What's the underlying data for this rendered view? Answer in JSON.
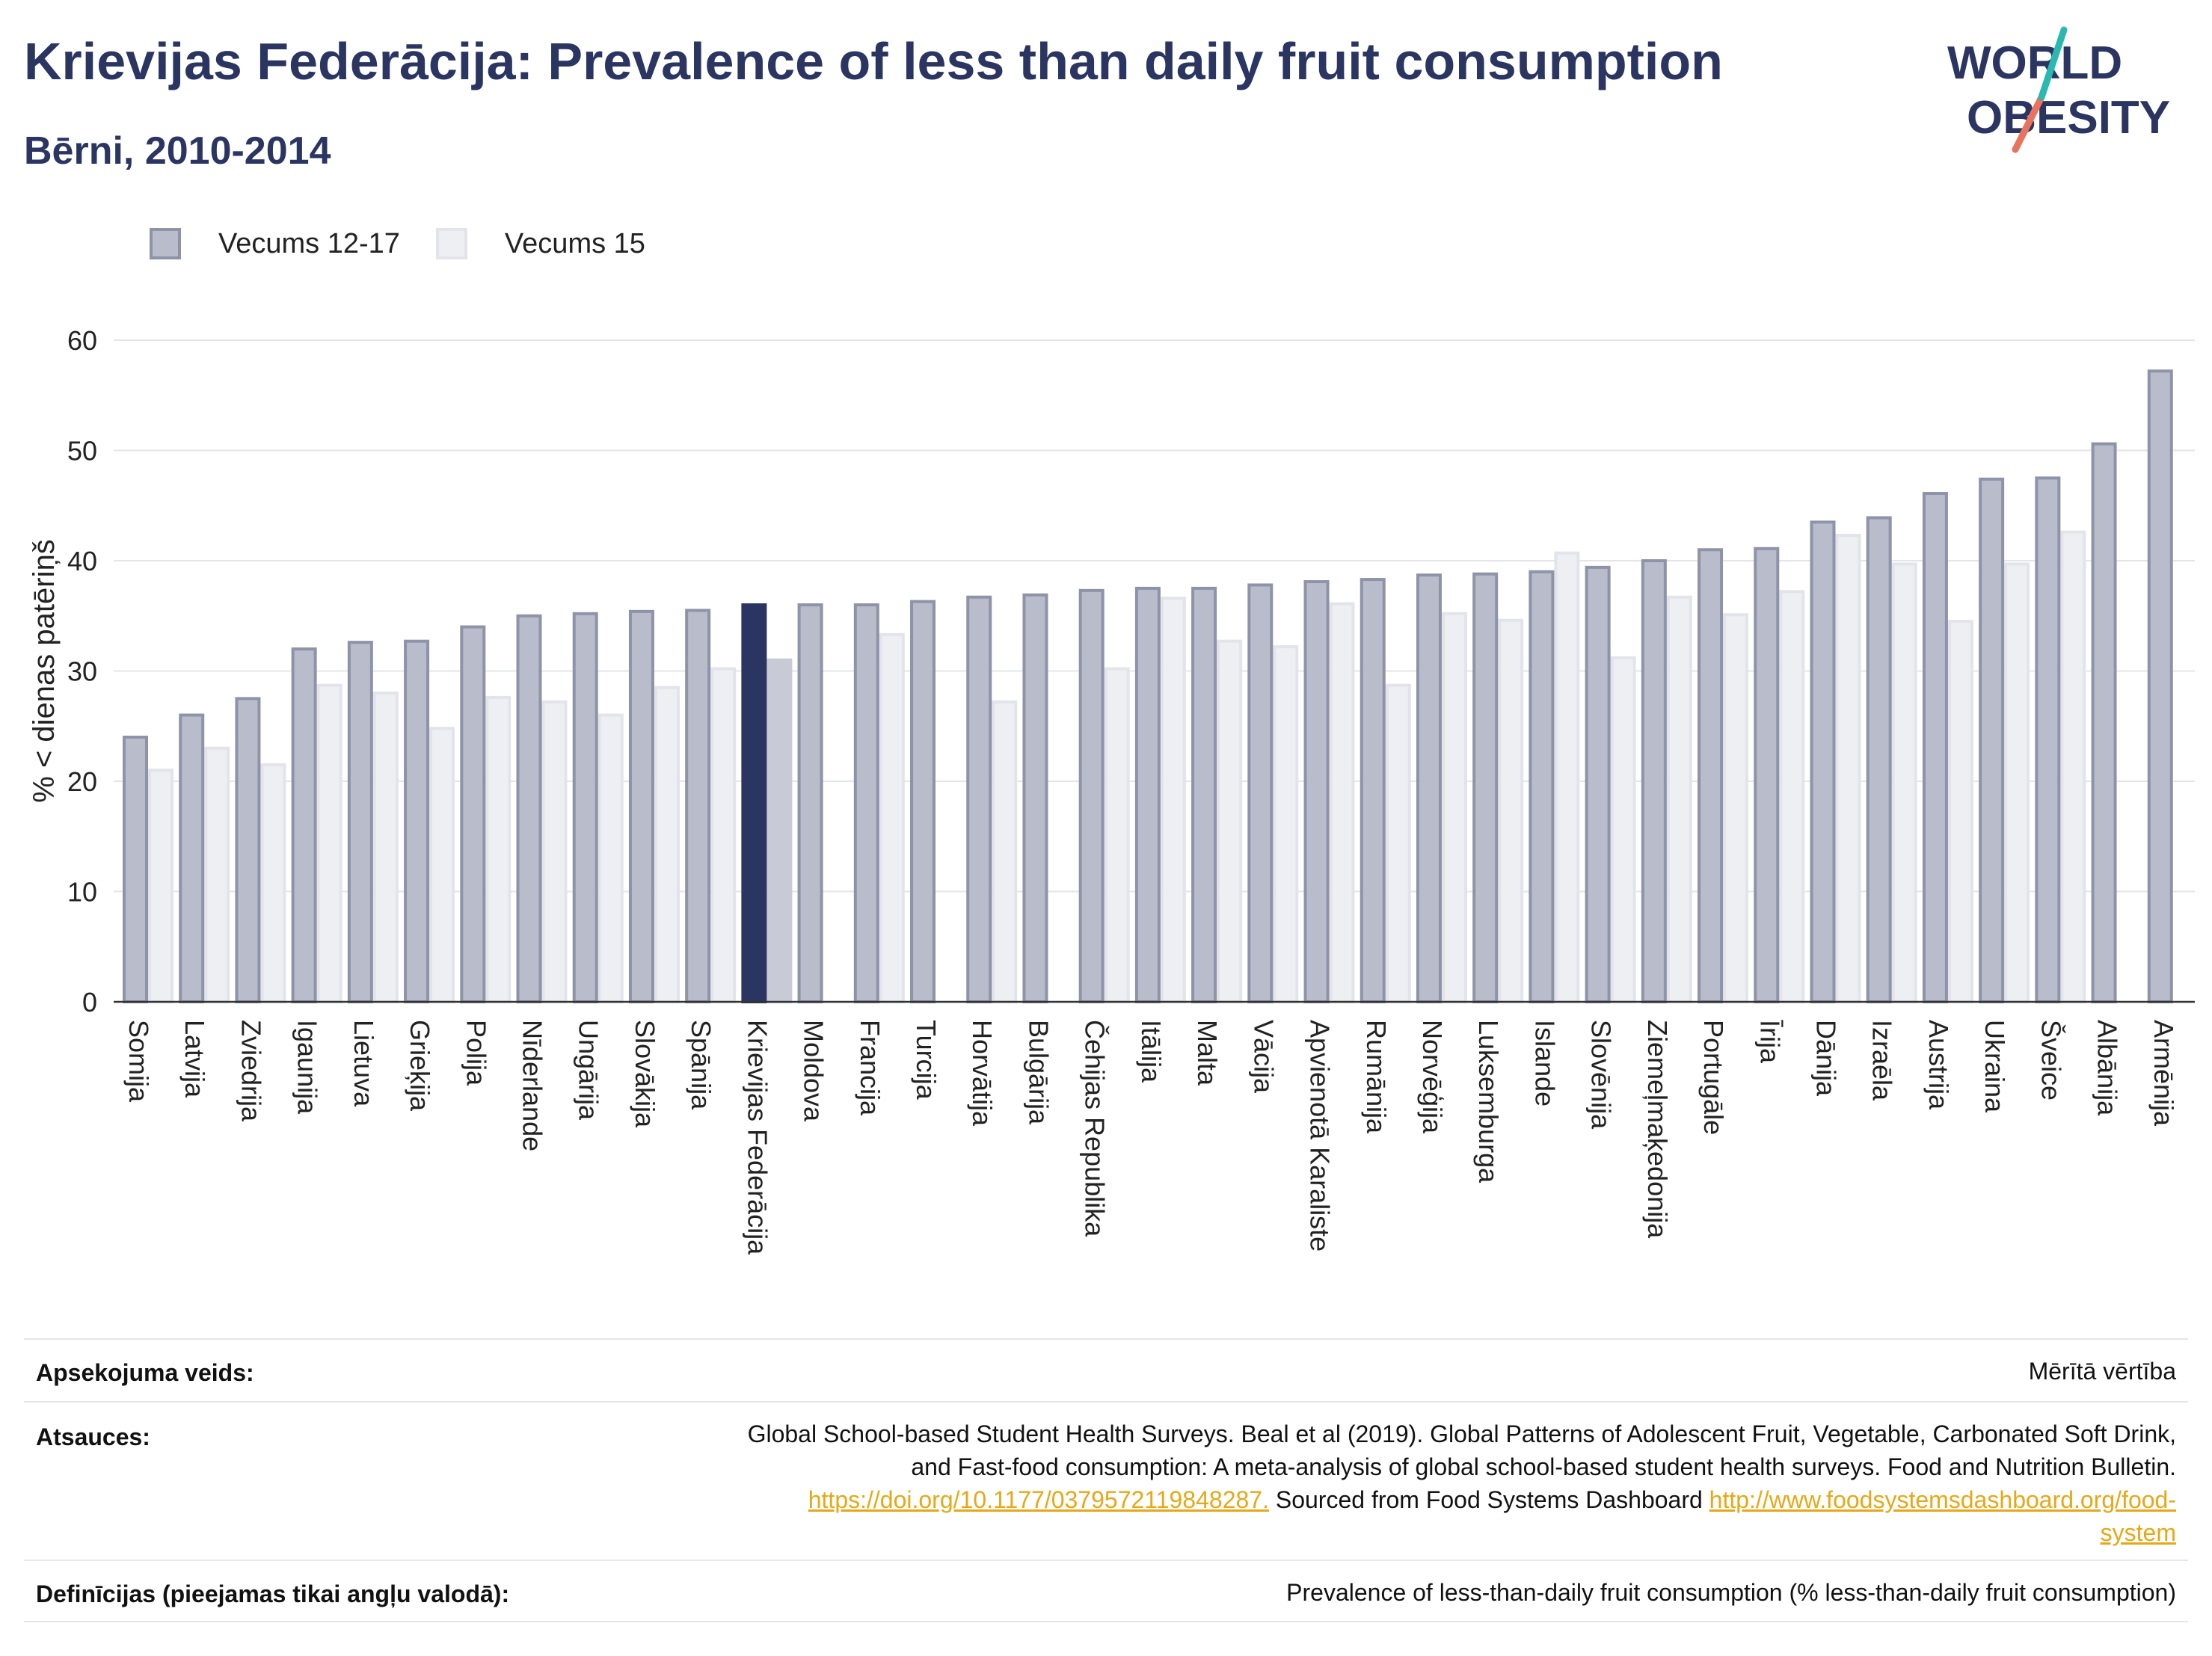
{
  "header": {
    "title": "Krievijas Federācija: Prevalence of less than daily fruit consumption",
    "subtitle": "Bērni, 2010-2014"
  },
  "logo": {
    "line1": "WORLD",
    "line2": "OBESITY"
  },
  "legend": {
    "series1": "Vecums 12-17",
    "series2": "Vecums 15"
  },
  "colors": {
    "series1_fill": "#b8bccb",
    "series1_stroke": "#8e93a8",
    "series2_fill": "#eeeff3",
    "series2_stroke": "#e2e4ea",
    "highlight1": "#2b3562",
    "highlight2": "#c8cad6",
    "title": "#2b3562",
    "link": "#e6a817"
  },
  "chart_data": {
    "type": "bar",
    "ylabel": "% < dienas patēriņš",
    "ylim": [
      0,
      60
    ],
    "yticks": [
      0,
      10,
      20,
      30,
      40,
      50,
      60
    ],
    "highlight": "Krievijas Federācija",
    "categories": [
      "Somija",
      "Latvija",
      "Zviedrija",
      "Igaunija",
      "Lietuva",
      "Grieķija",
      "Polija",
      "Nīderlande",
      "Ungārija",
      "Slovākija",
      "Spānija",
      "Krievijas Federācija",
      "Moldova",
      "Francija",
      "Turcija",
      "Horvātija",
      "Bulgārija",
      "Čehijas Republika",
      "Itālija",
      "Malta",
      "Vācija",
      "Apvienotā Karaliste",
      "Rumānija",
      "Norvēģija",
      "Luksemburga",
      "Islande",
      "Slovēnija",
      "Ziemeļmaķedonija",
      "Portugāle",
      "Īrija",
      "Dānija",
      "Izraēla",
      "Austrija",
      "Ukraina",
      "Šveice",
      "Albānija",
      "Armēnija"
    ],
    "series": [
      {
        "name": "Vecums 12-17",
        "values": [
          24,
          26,
          27.5,
          32,
          32.6,
          32.7,
          34,
          35,
          35.2,
          35.4,
          35.5,
          36,
          36,
          36,
          36.3,
          36.7,
          36.9,
          37.3,
          37.5,
          37.5,
          37.8,
          38.1,
          38.3,
          38.7,
          38.8,
          39,
          39.4,
          40,
          41,
          41.1,
          43.5,
          43.9,
          46.1,
          47.4,
          47.5,
          50.6,
          57.2
        ]
      },
      {
        "name": "Vecums 15",
        "values": [
          21,
          23,
          21.5,
          28.7,
          28,
          24.8,
          27.6,
          27.2,
          26,
          28.5,
          30.2,
          31,
          null,
          33.3,
          null,
          27.2,
          null,
          30.2,
          36.6,
          32.7,
          32.2,
          36.1,
          28.7,
          35.2,
          34.6,
          40.7,
          31.2,
          36.7,
          35.1,
          37.2,
          42.3,
          39.7,
          34.5,
          39.7,
          42.6,
          null,
          null
        ]
      }
    ]
  },
  "footer": {
    "survey_label": "Apsekojuma veids:",
    "survey_value": "Mērītā vērtība",
    "refs_label": "Atsauces:",
    "refs_line1": "Global School-based Student Health Surveys. Beal et al (2019). Global Patterns of Adolescent Fruit, Vegetable, Carbonated Soft Drink,",
    "refs_line2": "and Fast-food consumption: A meta-analysis of global school-based student health surveys. Food and Nutrition Bulletin.",
    "refs_link1": "https://doi.org/10.1177/0379572119848287.",
    "refs_mid": " Sourced from Food Systems Dashboard ",
    "refs_link2a": "http://www.foodsystemsdashboard.org/food-",
    "refs_link2b": "system",
    "defs_label": "Definīcijas (pieejamas tikai angļu valodā):",
    "defs_value": "Prevalence of less-than-daily fruit consumption (% less-than-daily fruit consumption)"
  }
}
